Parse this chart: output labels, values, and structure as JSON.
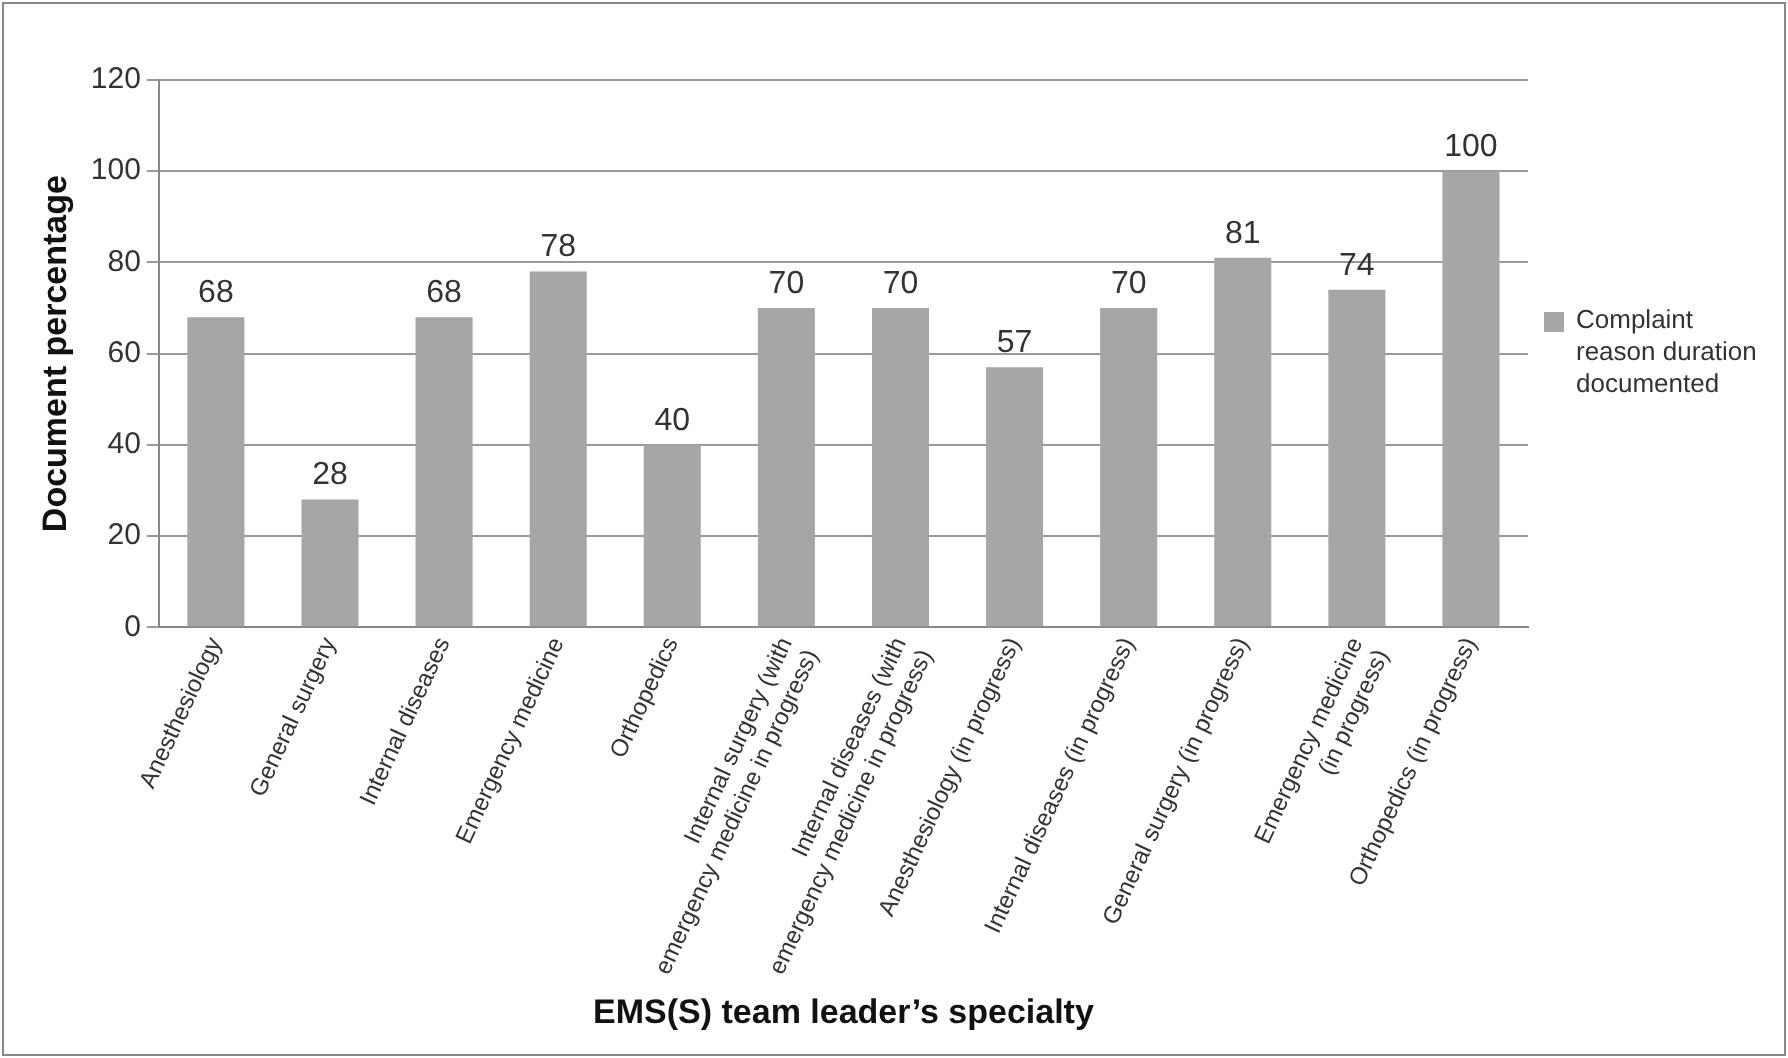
{
  "chart_data": {
    "type": "bar",
    "xlabel": "EMS(S) team leader’s specialty",
    "ylabel": "Document percentage",
    "categories": [
      "Anesthesiology",
      "General surgery",
      "Internal diseases",
      "Emergency medicine",
      "Orthopedics",
      "Internal surgery (with emergency medicine in progress)",
      "Internal diseases (with emergency medicine in progress)",
      "Anesthesiology (in progress)",
      "Internal diseases (in progress)",
      "General surgery (in progress)",
      "Emergency medicine (in progress)",
      "Orthopedics (in progress)"
    ],
    "series": [
      {
        "name": "Complaint reason duration documented",
        "color": "#a6a6a6",
        "values": [
          68,
          28,
          68,
          78,
          40,
          70,
          70,
          57,
          70,
          81,
          74,
          100
        ]
      }
    ],
    "ylim": [
      0,
      120
    ],
    "yticks": [
      0,
      20,
      40,
      60,
      80,
      100,
      120
    ],
    "grid": "y",
    "data_labels": true,
    "legend": "right"
  }
}
